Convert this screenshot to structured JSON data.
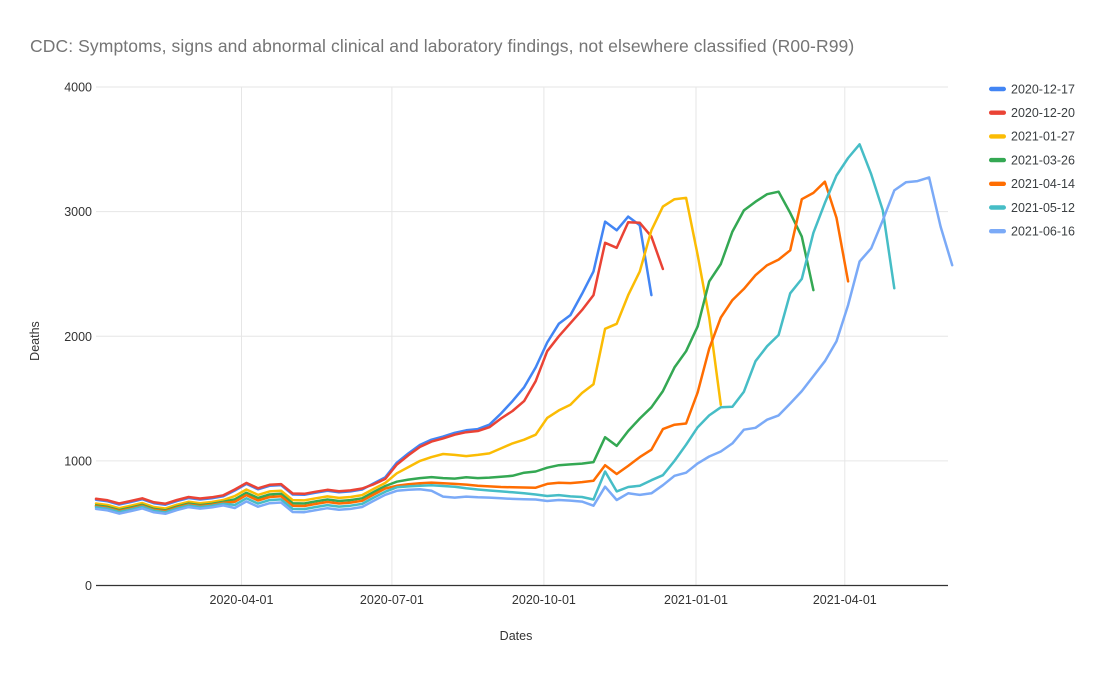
{
  "chart_data": {
    "type": "line",
    "title": "CDC: Symptoms, signs and abnormal clinical and laboratory findings, not elsewhere classified (R00-R99)",
    "xlabel": "Dates",
    "ylabel": "Deaths",
    "ylim": [
      0,
      4000
    ],
    "y_ticks": [
      0,
      1000,
      2000,
      3000,
      4000
    ],
    "x_ticks": [
      {
        "label": "2020-04-01",
        "day": 88
      },
      {
        "label": "2020-07-01",
        "day": 179
      },
      {
        "label": "2020-10-01",
        "day": 271
      },
      {
        "label": "2021-01-01",
        "day": 363
      },
      {
        "label": "2021-04-01",
        "day": 453
      }
    ],
    "step_days": 7,
    "grid": true,
    "legend_position": "right",
    "series": [
      {
        "name": "2020-12-17",
        "color": "#4285F4",
        "values": [
          688,
          676,
          650,
          670,
          692,
          660,
          648,
          678,
          702,
          690,
          700,
          716,
          762,
          815,
          772,
          800,
          806,
          730,
          728,
          745,
          760,
          748,
          755,
          770,
          820,
          868,
          985,
          1060,
          1128,
          1170,
          1195,
          1225,
          1245,
          1255,
          1290,
          1380,
          1480,
          1590,
          1750,
          1950,
          2100,
          2170,
          2340,
          2520,
          2920,
          2850,
          2960,
          2890,
          2330
        ]
      },
      {
        "name": "2020-12-20",
        "color": "#EA4335",
        "values": [
          696,
          684,
          658,
          678,
          700,
          668,
          656,
          686,
          710,
          698,
          708,
          724,
          770,
          823,
          780,
          808,
          814,
          738,
          736,
          753,
          768,
          756,
          763,
          778,
          812,
          855,
          970,
          1045,
          1112,
          1155,
          1180,
          1210,
          1230,
          1240,
          1270,
          1340,
          1400,
          1480,
          1640,
          1880,
          2000,
          2105,
          2210,
          2330,
          2750,
          2710,
          2915,
          2910,
          2800,
          2540
        ]
      },
      {
        "name": "2021-01-27",
        "color": "#FBBC04",
        "values": [
          658,
          646,
          620,
          640,
          662,
          630,
          618,
          648,
          672,
          660,
          670,
          686,
          717,
          770,
          727,
          755,
          761,
          685,
          683,
          700,
          715,
          703,
          710,
          725,
          775,
          823,
          900,
          950,
          1000,
          1030,
          1055,
          1048,
          1038,
          1048,
          1060,
          1100,
          1140,
          1170,
          1210,
          1345,
          1405,
          1450,
          1545,
          1615,
          2060,
          2100,
          2330,
          2520,
          2850,
          3040,
          3100,
          3110,
          2650,
          2150,
          1450
        ]
      },
      {
        "name": "2021-03-26",
        "color": "#34A853",
        "values": [
          643,
          631,
          605,
          625,
          647,
          615,
          603,
          633,
          657,
          645,
          655,
          671,
          692,
          745,
          702,
          730,
          736,
          660,
          658,
          675,
          690,
          678,
          685,
          700,
          750,
          798,
          833,
          850,
          862,
          870,
          862,
          858,
          868,
          862,
          866,
          872,
          880,
          905,
          915,
          945,
          965,
          972,
          978,
          990,
          1190,
          1120,
          1240,
          1340,
          1430,
          1560,
          1750,
          1880,
          2080,
          2440,
          2580,
          2840,
          3010,
          3080,
          3140,
          3160,
          2990,
          2800,
          2370
        ]
      },
      {
        "name": "2021-04-14",
        "color": "#FF6D01",
        "values": [
          635,
          623,
          597,
          617,
          639,
          607,
          595,
          625,
          649,
          637,
          647,
          663,
          672,
          725,
          682,
          710,
          716,
          640,
          638,
          655,
          670,
          658,
          665,
          680,
          730,
          778,
          800,
          812,
          820,
          826,
          820,
          815,
          810,
          800,
          795,
          790,
          788,
          786,
          785,
          815,
          825,
          822,
          830,
          840,
          965,
          895,
          960,
          1030,
          1090,
          1255,
          1290,
          1300,
          1550,
          1900,
          2150,
          2290,
          2380,
          2490,
          2570,
          2615,
          2690,
          3100,
          3150,
          3240,
          2950,
          2440
        ]
      },
      {
        "name": "2021-05-12",
        "color": "#46BDC6",
        "values": [
          628,
          616,
          590,
          610,
          632,
          600,
          588,
          618,
          642,
          630,
          640,
          656,
          647,
          700,
          657,
          685,
          691,
          615,
          613,
          630,
          645,
          633,
          640,
          655,
          705,
          753,
          788,
          795,
          800,
          805,
          798,
          792,
          780,
          770,
          762,
          755,
          748,
          740,
          730,
          718,
          725,
          715,
          710,
          690,
          915,
          755,
          790,
          800,
          845,
          885,
          1000,
          1130,
          1270,
          1365,
          1430,
          1435,
          1555,
          1800,
          1920,
          2010,
          2345,
          2460,
          2830,
          3070,
          3290,
          3430,
          3540,
          3300,
          3010,
          2385
        ]
      },
      {
        "name": "2021-06-16",
        "color": "#7BAAF7",
        "values": [
          615,
          603,
          577,
          597,
          619,
          587,
          575,
          605,
          629,
          617,
          627,
          643,
          622,
          675,
          632,
          660,
          666,
          590,
          588,
          605,
          620,
          608,
          615,
          630,
          680,
          728,
          760,
          768,
          772,
          760,
          713,
          705,
          713,
          708,
          705,
          700,
          695,
          692,
          690,
          678,
          686,
          681,
          673,
          640,
          793,
          686,
          740,
          727,
          740,
          805,
          880,
          905,
          980,
          1035,
          1075,
          1140,
          1250,
          1265,
          1330,
          1365,
          1460,
          1560,
          1680,
          1800,
          1960,
          2250,
          2600,
          2706,
          2930,
          3170,
          3235,
          3245,
          3275,
          2880,
          2570
        ]
      }
    ]
  }
}
